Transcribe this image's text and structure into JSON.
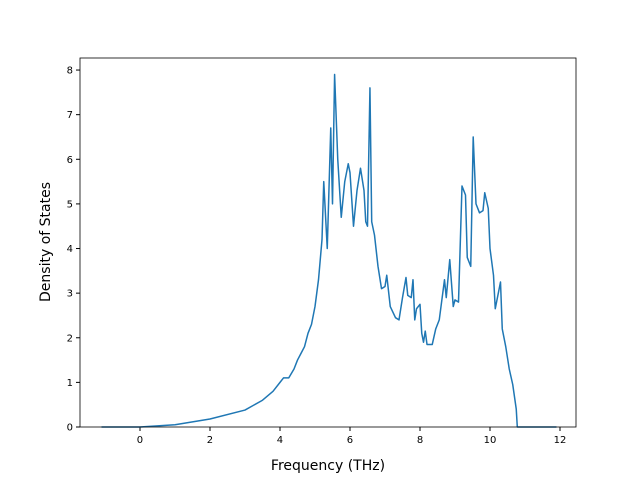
{
  "chart_data": {
    "type": "line",
    "xlabel": "Frequency (THz)",
    "ylabel": "Density of States",
    "xlim": [
      -1.714,
      12.457
    ],
    "ylim": [
      0,
      8.27
    ],
    "xticks": [
      0,
      2,
      4,
      6,
      8,
      10,
      12
    ],
    "yticks": [
      0,
      1,
      2,
      3,
      4,
      5,
      6,
      7,
      8
    ],
    "series": [
      {
        "color": "#1f77b4",
        "x": [
          -1.1,
          0,
          1,
          2,
          3,
          3.5,
          3.8,
          4.0,
          4.1,
          4.25,
          4.4,
          4.5,
          4.6,
          4.7,
          4.8,
          4.9,
          5.0,
          5.1,
          5.2,
          5.25,
          5.35,
          5.45,
          5.5,
          5.56,
          5.65,
          5.75,
          5.85,
          5.95,
          6.0,
          6.1,
          6.2,
          6.3,
          6.4,
          6.45,
          6.5,
          6.57,
          6.62,
          6.7,
          6.8,
          6.9,
          7.0,
          7.05,
          7.15,
          7.3,
          7.4,
          7.5,
          7.6,
          7.65,
          7.75,
          7.8,
          7.85,
          7.9,
          8.0,
          8.05,
          8.1,
          8.15,
          8.2,
          8.35,
          8.45,
          8.55,
          8.7,
          8.75,
          8.85,
          8.95,
          9.0,
          9.1,
          9.2,
          9.3,
          9.35,
          9.45,
          9.52,
          9.6,
          9.7,
          9.8,
          9.85,
          9.95,
          10.0,
          10.1,
          10.15,
          10.3,
          10.35,
          10.45,
          10.55,
          10.65,
          10.75,
          10.78,
          11.9
        ],
        "values": [
          0,
          0,
          0.05,
          0.18,
          0.38,
          0.6,
          0.8,
          1.0,
          1.1,
          1.1,
          1.3,
          1.5,
          1.65,
          1.8,
          2.1,
          2.3,
          2.7,
          3.3,
          4.2,
          5.5,
          4.0,
          6.7,
          5.0,
          7.9,
          6.0,
          4.7,
          5.5,
          5.9,
          5.7,
          4.5,
          5.3,
          5.8,
          5.3,
          4.6,
          4.5,
          7.6,
          4.6,
          4.3,
          3.6,
          3.1,
          3.15,
          3.4,
          2.7,
          2.45,
          2.4,
          2.9,
          3.35,
          2.95,
          2.9,
          3.3,
          2.4,
          2.65,
          2.75,
          2.1,
          1.9,
          2.15,
          1.85,
          1.85,
          2.2,
          2.4,
          3.3,
          2.9,
          3.75,
          2.7,
          2.85,
          2.8,
          5.4,
          5.2,
          3.8,
          3.6,
          6.5,
          5.0,
          4.8,
          4.85,
          5.25,
          4.9,
          4.0,
          3.4,
          2.65,
          3.25,
          2.2,
          1.8,
          1.3,
          0.95,
          0.4,
          0,
          0
        ]
      }
    ]
  }
}
